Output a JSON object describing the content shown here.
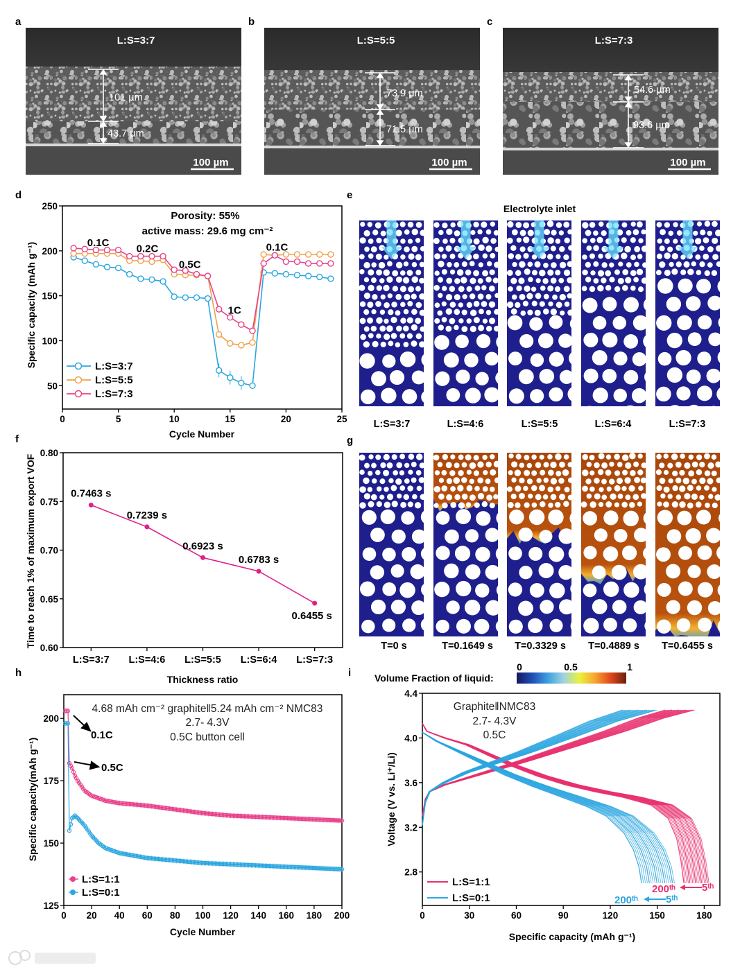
{
  "panel_letters": {
    "a": "a",
    "b": "b",
    "c": "c",
    "d": "d",
    "e": "e",
    "f": "f",
    "g": "g",
    "h": "h",
    "i": "i"
  },
  "sem": [
    {
      "label": "L:S=3:7",
      "layers": [
        "101 µm",
        "43.7 µm"
      ],
      "scale_bar": "100 µm"
    },
    {
      "label": "L:S=5:5",
      "layers": [
        "73.9 µm",
        "71.5 µm"
      ],
      "scale_bar": "100 µm"
    },
    {
      "label": "L:S=7:3",
      "layers": [
        "54.6 µm",
        "93.6 µm"
      ],
      "scale_bar": "100 µm"
    }
  ],
  "simulations": {
    "e": {
      "title": "Electrolyte inlet",
      "columns": [
        "L:S=3:7",
        "L:S=4:6",
        "L:S=5:5",
        "L:S=6:4",
        "L:S=7:3"
      ],
      "small_particle_fraction": [
        0.7,
        0.6,
        0.5,
        0.4,
        0.3
      ]
    },
    "g": {
      "columns": [
        "T=0 s",
        "T=0.1649 s",
        "T=0.3329 s",
        "T=0.4889 s",
        "T=0.6455 s"
      ],
      "small_particle_fraction": 0.3,
      "liquid_front": [
        0,
        0.28,
        0.45,
        0.68,
        0.97
      ]
    },
    "colorbar": {
      "label": "Volume Fraction of liquid:",
      "ticks": [
        "0",
        "0.5",
        "1"
      ],
      "colors": [
        "#17185e",
        "#1f4fb5",
        "#3fa0e0",
        "#9fd3e0",
        "#e8f23c",
        "#f9a431",
        "#e0471a",
        "#6a200c"
      ]
    }
  },
  "watermark": "大数跨境",
  "chart_data": [
    {
      "panel": "d",
      "type": "line",
      "xlabel": "Cycle Number",
      "ylabel": "Specific capacity (mAh g⁻¹)",
      "xlim": [
        0,
        25
      ],
      "ylim": [
        24,
        250
      ],
      "xticks": [
        "0",
        "5",
        "10",
        "15",
        "20",
        "25"
      ],
      "yticks": [
        "50",
        "100",
        "150",
        "200",
        "250"
      ],
      "annotations": [
        "Porosity: 55%",
        "active mass:  29.6 mg cm⁻²"
      ],
      "rate_labels": [
        {
          "text": "0.1C",
          "x": 3.2,
          "y": 209
        },
        {
          "text": "0.2C",
          "x": 7.6,
          "y": 202.5
        },
        {
          "text": "0.5C",
          "x": 11.4,
          "y": 185
        },
        {
          "text": "1C",
          "x": 15.4,
          "y": 134
        },
        {
          "text": "0.1C",
          "x": 19.2,
          "y": 204
        }
      ],
      "legend": "bottom-left",
      "x": [
        1,
        2,
        3,
        4,
        5,
        6,
        7,
        8,
        9,
        10,
        11,
        12,
        13,
        14,
        15,
        16,
        17,
        18,
        19,
        20,
        21,
        22,
        23,
        24
      ],
      "series": [
        {
          "name": "L:S=3:7",
          "color": "#2ba6e0",
          "values": [
            193,
            189,
            185,
            182,
            181,
            174,
            169,
            168,
            166,
            149,
            148,
            148,
            147,
            67,
            59,
            53,
            50,
            176,
            175,
            174,
            173,
            172,
            171,
            169
          ]
        },
        {
          "name": "L:S=5:5",
          "color": "#f0a04b",
          "values": [
            197,
            197,
            197,
            197,
            197,
            189,
            189,
            188,
            190,
            174,
            173,
            173,
            172,
            107,
            97,
            95,
            98,
            196,
            195,
            196,
            196,
            196,
            196,
            196
          ]
        },
        {
          "name": "L:S=7:3",
          "color": "#e8408a",
          "values": [
            203,
            202,
            201,
            201,
            201,
            194,
            194,
            194,
            194,
            179,
            178,
            174,
            172,
            135,
            126,
            118,
            111,
            186,
            195,
            188,
            188,
            186,
            186,
            186
          ]
        }
      ]
    },
    {
      "panel": "f",
      "type": "line",
      "xlabel": "Thickness ratio",
      "ylabel": "Time to reach 1% of maximum export VOF",
      "categories": [
        "L:S=3:7",
        "L:S=4:6",
        "L:S=5:5",
        "L:S=6:4",
        "L:S=7:3"
      ],
      "values": [
        0.7463,
        0.7239,
        0.6923,
        0.6783,
        0.6455
      ],
      "data_labels": [
        "0.7463 s",
        "0.7239 s",
        "0.6923 s",
        "0.6783 s",
        "0.6455 s"
      ],
      "ylim": [
        0.6,
        0.8
      ],
      "yticks": [
        "0.60",
        "0.65",
        "0.70",
        "0.75",
        "0.80"
      ],
      "color": "#e0208a"
    },
    {
      "panel": "h",
      "type": "scatter",
      "xlabel": "Cycle Number",
      "ylabel": "Specific capacity(mAh g⁻¹)",
      "xlim": [
        0,
        200
      ],
      "ylim": [
        125,
        209.5
      ],
      "xticks": [
        "0",
        "20",
        "40",
        "60",
        "80",
        "100",
        "120",
        "140",
        "160",
        "180",
        "200"
      ],
      "yticks": [
        "125",
        "150",
        "175",
        "200"
      ],
      "annotations": [
        "4.68 mAh cm⁻² graphite‖5.24 mAh cm⁻² NMC83",
        "2.7- 4.3V",
        "0.5C button cell"
      ],
      "arrow_labels": [
        "0.1C",
        "0.5C"
      ],
      "legend": "bottom-left",
      "x": [
        1,
        2,
        3,
        4,
        6,
        8,
        10,
        15,
        20,
        25,
        30,
        40,
        50,
        60,
        80,
        100,
        120,
        140,
        160,
        180,
        200
      ],
      "series": [
        {
          "name": "L:S=1:1",
          "color": "#e8408a",
          "values": [
            203,
            203,
            203,
            182,
            180,
            177,
            175,
            171,
            169,
            168,
            167,
            166,
            165.5,
            165,
            163.5,
            162,
            161,
            160.5,
            160,
            159.5,
            159
          ]
        },
        {
          "name": "L:S=0:1",
          "color": "#2ba6e0",
          "values": [
            198,
            198,
            198,
            155,
            160,
            161,
            160,
            157,
            153,
            150,
            148,
            146,
            145,
            144,
            143,
            142,
            141.5,
            141,
            140.5,
            140,
            139.5
          ]
        }
      ]
    },
    {
      "panel": "i",
      "type": "line",
      "xlabel": "Specific capacity (mAh g⁻¹)",
      "ylabel": "Voltage (V vs. Li⁺/Li)",
      "xlim": [
        0,
        190
      ],
      "ylim": [
        2.5,
        4.4
      ],
      "xticks": [
        "0",
        "30",
        "60",
        "90",
        "120",
        "150",
        "180"
      ],
      "yticks": [
        "2.8",
        "3.2",
        "3.6",
        "4.0",
        "4.4"
      ],
      "annotations": [
        "Graphite‖NMC83",
        "2.7- 4.3V",
        "0.5C"
      ],
      "cycle_labels": {
        "first": "5ᵗʰ",
        "last": "200ᵗʰ"
      },
      "legend": "bottom-left",
      "series": [
        {
          "name": "L:S=1:1",
          "color": "#e8306e",
          "charge": {
            "points": [
              [
                0,
                3.3
              ],
              [
                2,
                3.45
              ],
              [
                5,
                3.52
              ],
              [
                15,
                3.58
              ],
              [
                30,
                3.64
              ],
              [
                50,
                3.72
              ],
              [
                70,
                3.8
              ],
              [
                100,
                3.93
              ],
              [
                130,
                4.06
              ],
              [
                155,
                4.18
              ],
              [
                174,
                4.25
              ]
            ],
            "capacity_5th": 174,
            "capacity_200th": 155
          },
          "discharge": {
            "points": [
              [
                0,
                4.13
              ],
              [
                3,
                4.06
              ],
              [
                15,
                4.0
              ],
              [
                30,
                3.94
              ],
              [
                45,
                3.85
              ],
              [
                60,
                3.76
              ],
              [
                80,
                3.66
              ],
              [
                100,
                3.58
              ],
              [
                120,
                3.52
              ],
              [
                140,
                3.47
              ],
              [
                160,
                3.4
              ],
              [
                172,
                3.28
              ],
              [
                178,
                3.1
              ],
              [
                181,
                2.9
              ],
              [
                183,
                2.7
              ]
            ],
            "capacity_5th": 183,
            "capacity_200th": 167
          }
        },
        {
          "name": "L:S=0:1",
          "color": "#2ba6e0",
          "charge": {
            "points": [
              [
                0,
                3.22
              ],
              [
                2,
                3.42
              ],
              [
                5,
                3.52
              ],
              [
                15,
                3.6
              ],
              [
                30,
                3.69
              ],
              [
                50,
                3.78
              ],
              [
                70,
                3.87
              ],
              [
                100,
                4.02
              ],
              [
                125,
                4.15
              ],
              [
                150,
                4.25
              ]
            ],
            "capacity_5th": 150,
            "capacity_200th": 128
          },
          "discharge": {
            "points": [
              [
                0,
                4.05
              ],
              [
                10,
                3.97
              ],
              [
                25,
                3.88
              ],
              [
                40,
                3.79
              ],
              [
                60,
                3.67
              ],
              [
                80,
                3.57
              ],
              [
                100,
                3.48
              ],
              [
                120,
                3.39
              ],
              [
                135,
                3.3
              ],
              [
                148,
                3.15
              ],
              [
                155,
                3.0
              ],
              [
                159,
                2.85
              ],
              [
                161,
                2.7
              ]
            ],
            "capacity_5th": 161,
            "capacity_200th": 140
          }
        }
      ]
    }
  ]
}
